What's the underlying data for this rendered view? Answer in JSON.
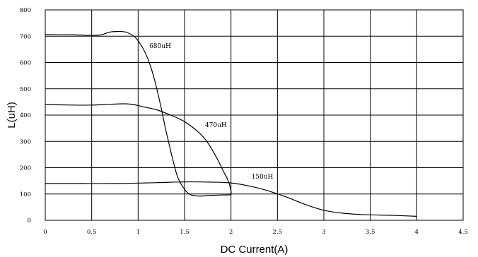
{
  "chart_data": {
    "type": "line",
    "title": "",
    "xlabel": "DC Current(A)",
    "ylabel": "L(uH)",
    "xlim": [
      0,
      4.5
    ],
    "ylim": [
      0,
      800
    ],
    "xticks": [
      0,
      0.5,
      1,
      1.5,
      2,
      2.5,
      3,
      3.5,
      4,
      4.5
    ],
    "xtick_labels": [
      "0",
      "0.5",
      "1",
      "1.5",
      "2",
      "2.5",
      "3",
      "3.5",
      "4",
      "4.5"
    ],
    "yticks": [
      0,
      100,
      200,
      300,
      400,
      500,
      600,
      700,
      800
    ],
    "ytick_labels": [
      "0",
      "100",
      "200",
      "300",
      "400",
      "500",
      "600",
      "700",
      "800"
    ],
    "grid": true,
    "legend": "none",
    "line_color": "#000000",
    "series": [
      {
        "name": "680uH",
        "label_at": [
          1.12,
          655
        ],
        "points": [
          [
            0,
            706
          ],
          [
            0.3,
            705
          ],
          [
            0.5,
            703
          ],
          [
            0.6,
            705
          ],
          [
            0.7,
            716
          ],
          [
            0.8,
            718
          ],
          [
            0.88,
            714
          ],
          [
            0.97,
            695
          ],
          [
            1.05,
            655
          ],
          [
            1.12,
            600
          ],
          [
            1.18,
            530
          ],
          [
            1.24,
            440
          ],
          [
            1.3,
            340
          ],
          [
            1.36,
            250
          ],
          [
            1.42,
            170
          ],
          [
            1.48,
            128
          ],
          [
            1.55,
            100
          ],
          [
            1.65,
            92
          ],
          [
            1.8,
            95
          ],
          [
            2.0,
            97
          ]
        ]
      },
      {
        "name": "470uH",
        "label_at": [
          1.72,
          355
        ],
        "points": [
          [
            0,
            440
          ],
          [
            0.3,
            438
          ],
          [
            0.5,
            438
          ],
          [
            0.7,
            441
          ],
          [
            0.85,
            443
          ],
          [
            0.95,
            440
          ],
          [
            1.05,
            432
          ],
          [
            1.2,
            420
          ],
          [
            1.35,
            400
          ],
          [
            1.5,
            375
          ],
          [
            1.65,
            335
          ],
          [
            1.75,
            295
          ],
          [
            1.85,
            235
          ],
          [
            1.92,
            185
          ],
          [
            1.97,
            150
          ],
          [
            2.0,
            112
          ],
          [
            2.0,
            97
          ]
        ]
      },
      {
        "name": "150uH",
        "label_at": [
          2.22,
          158
        ],
        "points": [
          [
            0,
            140
          ],
          [
            0.4,
            140
          ],
          [
            0.8,
            140
          ],
          [
            1.2,
            143
          ],
          [
            1.5,
            146
          ],
          [
            1.8,
            145
          ],
          [
            2.0,
            142
          ],
          [
            2.2,
            130
          ],
          [
            2.4,
            112
          ],
          [
            2.6,
            88
          ],
          [
            2.8,
            60
          ],
          [
            3.0,
            38
          ],
          [
            3.2,
            27
          ],
          [
            3.4,
            22
          ],
          [
            3.6,
            20
          ],
          [
            3.8,
            18
          ],
          [
            4.0,
            15
          ]
        ]
      }
    ]
  }
}
